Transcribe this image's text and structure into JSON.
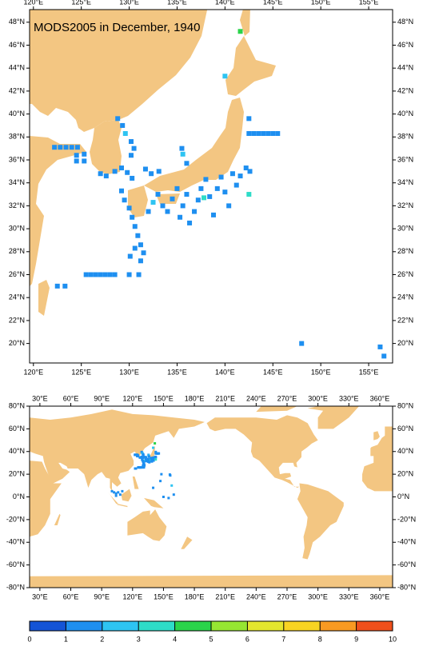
{
  "title": "MODS2005 in December, 1940",
  "regional_map": {
    "xlim": [
      119.6,
      157.5
    ],
    "ylim": [
      18.3,
      49.1
    ],
    "xticks": [
      {
        "value": 120,
        "label": "120°E"
      },
      {
        "value": 125,
        "label": "125°E"
      },
      {
        "value": 130,
        "label": "130°E"
      },
      {
        "value": 135,
        "label": "135°E"
      },
      {
        "value": 140,
        "label": "140°E"
      },
      {
        "value": 145,
        "label": "145°E"
      },
      {
        "value": 150,
        "label": "150°E"
      },
      {
        "value": 155,
        "label": "155°E"
      }
    ],
    "yticks": [
      {
        "value": 20,
        "label": "20°N"
      },
      {
        "value": 22,
        "label": "22°N"
      },
      {
        "value": 24,
        "label": "24°N"
      },
      {
        "value": 26,
        "label": "26°N"
      },
      {
        "value": 28,
        "label": "28°N"
      },
      {
        "value": 30,
        "label": "30°N"
      },
      {
        "value": 32,
        "label": "32°N"
      },
      {
        "value": 34,
        "label": "34°N"
      },
      {
        "value": 36,
        "label": "36°N"
      },
      {
        "value": 38,
        "label": "38°N"
      },
      {
        "value": 40,
        "label": "40°N"
      },
      {
        "value": 42,
        "label": "42°N"
      },
      {
        "value": 44,
        "label": "44°N"
      },
      {
        "value": 46,
        "label": "46°N"
      },
      {
        "value": 48,
        "label": "48°N"
      }
    ]
  },
  "global_map": {
    "xlim": [
      20,
      372.5
    ],
    "ylim": [
      -80,
      80
    ],
    "xticks": [
      {
        "value": 30,
        "label": "30°E"
      },
      {
        "value": 60,
        "label": "60°E"
      },
      {
        "value": 90,
        "label": "90°E"
      },
      {
        "value": 120,
        "label": "120°E"
      },
      {
        "value": 150,
        "label": "150°E"
      },
      {
        "value": 180,
        "label": "180°E"
      },
      {
        "value": 210,
        "label": "210°E"
      },
      {
        "value": 240,
        "label": "240°E"
      },
      {
        "value": 270,
        "label": "270°E"
      },
      {
        "value": 300,
        "label": "300°E"
      },
      {
        "value": 330,
        "label": "330°E"
      },
      {
        "value": 360,
        "label": "360°E"
      }
    ],
    "yticks": [
      {
        "value": -80,
        "label": "-80°N"
      },
      {
        "value": -60,
        "label": "-60°N"
      },
      {
        "value": -40,
        "label": "-40°N"
      },
      {
        "value": -20,
        "label": "-20°N"
      },
      {
        "value": 0,
        "label": "0°N"
      },
      {
        "value": 20,
        "label": "20°N"
      },
      {
        "value": 40,
        "label": "40°N"
      },
      {
        "value": 60,
        "label": "60°N"
      },
      {
        "value": 80,
        "label": "80°N"
      }
    ]
  },
  "observations": [
    {
      "lon": 141.6,
      "lat": 47.2,
      "value": 4.5
    },
    {
      "lon": 140,
      "lat": 43.3,
      "value": 2.6
    },
    {
      "lon": 142.5,
      "lat": 39.6,
      "value": 1.3
    },
    {
      "lon": 142.5,
      "lat": 38.3,
      "value": 1.3
    },
    {
      "lon": 143,
      "lat": 38.3,
      "value": 1.3
    },
    {
      "lon": 143.5,
      "lat": 38.3,
      "value": 1.3
    },
    {
      "lon": 144,
      "lat": 38.3,
      "value": 1.3
    },
    {
      "lon": 144.5,
      "lat": 38.3,
      "value": 1.3
    },
    {
      "lon": 145,
      "lat": 38.3,
      "value": 1.3
    },
    {
      "lon": 145.5,
      "lat": 38.3,
      "value": 1.3
    },
    {
      "lon": 128.8,
      "lat": 39.6,
      "value": 1.3
    },
    {
      "lon": 129.3,
      "lat": 39,
      "value": 1.3
    },
    {
      "lon": 129.6,
      "lat": 38.3,
      "value": 2.3
    },
    {
      "lon": 130.2,
      "lat": 37.6,
      "value": 1.3
    },
    {
      "lon": 130.5,
      "lat": 37,
      "value": 1.3
    },
    {
      "lon": 130.2,
      "lat": 36.4,
      "value": 1.3
    },
    {
      "lon": 122.2,
      "lat": 37.1,
      "value": 1.3
    },
    {
      "lon": 122.8,
      "lat": 37.1,
      "value": 1.3
    },
    {
      "lon": 123.4,
      "lat": 37.1,
      "value": 1.3
    },
    {
      "lon": 124,
      "lat": 37.1,
      "value": 1.3
    },
    {
      "lon": 124.6,
      "lat": 37.1,
      "value": 1.3
    },
    {
      "lon": 124.5,
      "lat": 36.4,
      "value": 1.3
    },
    {
      "lon": 124.5,
      "lat": 35.9,
      "value": 1.3
    },
    {
      "lon": 125.3,
      "lat": 36.5,
      "value": 1.3
    },
    {
      "lon": 125.3,
      "lat": 35.9,
      "value": 1.3
    },
    {
      "lon": 127,
      "lat": 34.8,
      "value": 1.3
    },
    {
      "lon": 127.6,
      "lat": 34.6,
      "value": 1.3
    },
    {
      "lon": 128.5,
      "lat": 35,
      "value": 1.3
    },
    {
      "lon": 129.2,
      "lat": 35.3,
      "value": 1.3
    },
    {
      "lon": 129.8,
      "lat": 34.9,
      "value": 1.3
    },
    {
      "lon": 130.3,
      "lat": 34.4,
      "value": 1.3
    },
    {
      "lon": 129.2,
      "lat": 33.3,
      "value": 1.3
    },
    {
      "lon": 129.5,
      "lat": 32.5,
      "value": 1.3
    },
    {
      "lon": 130,
      "lat": 31.8,
      "value": 1.3
    },
    {
      "lon": 130.3,
      "lat": 31,
      "value": 1.3
    },
    {
      "lon": 130.6,
      "lat": 30.2,
      "value": 1.3
    },
    {
      "lon": 130.9,
      "lat": 29.4,
      "value": 1.3
    },
    {
      "lon": 131.2,
      "lat": 28.6,
      "value": 1.3
    },
    {
      "lon": 131.5,
      "lat": 27.9,
      "value": 1.3
    },
    {
      "lon": 131.2,
      "lat": 27.2,
      "value": 1.3
    },
    {
      "lon": 130.6,
      "lat": 28.3,
      "value": 1.3
    },
    {
      "lon": 130.1,
      "lat": 27.6,
      "value": 1.3
    },
    {
      "lon": 125.5,
      "lat": 26,
      "value": 1.3
    },
    {
      "lon": 126,
      "lat": 26,
      "value": 1.3
    },
    {
      "lon": 126.5,
      "lat": 26,
      "value": 1.3
    },
    {
      "lon": 127,
      "lat": 26,
      "value": 1.3
    },
    {
      "lon": 127.5,
      "lat": 26,
      "value": 1.3
    },
    {
      "lon": 128,
      "lat": 26,
      "value": 1.3
    },
    {
      "lon": 128.5,
      "lat": 26,
      "value": 1.3
    },
    {
      "lon": 130,
      "lat": 26,
      "value": 1.3
    },
    {
      "lon": 131,
      "lat": 26,
      "value": 1.3
    },
    {
      "lon": 122.5,
      "lat": 25,
      "value": 1.3
    },
    {
      "lon": 123.3,
      "lat": 25,
      "value": 1.3
    },
    {
      "lon": 132,
      "lat": 31.5,
      "value": 1.3
    },
    {
      "lon": 132.5,
      "lat": 32.3,
      "value": 2.4
    },
    {
      "lon": 133,
      "lat": 33,
      "value": 1.3
    },
    {
      "lon": 133.5,
      "lat": 32,
      "value": 1.3
    },
    {
      "lon": 134,
      "lat": 31.5,
      "value": 1.3
    },
    {
      "lon": 134.5,
      "lat": 32.6,
      "value": 1.3
    },
    {
      "lon": 135,
      "lat": 33.5,
      "value": 1.3
    },
    {
      "lon": 135.3,
      "lat": 31,
      "value": 1.3
    },
    {
      "lon": 135.6,
      "lat": 32,
      "value": 1.3
    },
    {
      "lon": 136,
      "lat": 33,
      "value": 1.3
    },
    {
      "lon": 136.3,
      "lat": 30.5,
      "value": 1.3
    },
    {
      "lon": 136.8,
      "lat": 31.5,
      "value": 1.3
    },
    {
      "lon": 137.2,
      "lat": 32.5,
      "value": 1.3
    },
    {
      "lon": 137.5,
      "lat": 33.5,
      "value": 1.3
    },
    {
      "lon": 137.8,
      "lat": 32.7,
      "value": 3.2
    },
    {
      "lon": 138,
      "lat": 34.3,
      "value": 1.3
    },
    {
      "lon": 138.4,
      "lat": 32.8,
      "value": 1.3
    },
    {
      "lon": 138.8,
      "lat": 31.2,
      "value": 1.3
    },
    {
      "lon": 139.2,
      "lat": 33.5,
      "value": 1.3
    },
    {
      "lon": 139.6,
      "lat": 34.5,
      "value": 1.3
    },
    {
      "lon": 140,
      "lat": 33.2,
      "value": 1.3
    },
    {
      "lon": 140.4,
      "lat": 32,
      "value": 1.3
    },
    {
      "lon": 140.8,
      "lat": 34.8,
      "value": 1.3
    },
    {
      "lon": 141.2,
      "lat": 33.8,
      "value": 1.3
    },
    {
      "lon": 141.6,
      "lat": 34.6,
      "value": 1.3
    },
    {
      "lon": 142.2,
      "lat": 35.3,
      "value": 1.3
    },
    {
      "lon": 142.6,
      "lat": 35,
      "value": 1.3
    },
    {
      "lon": 142.5,
      "lat": 33,
      "value": 3.5
    },
    {
      "lon": 135.5,
      "lat": 37,
      "value": 1.3
    },
    {
      "lon": 135.6,
      "lat": 36.5,
      "value": 2.5
    },
    {
      "lon": 136,
      "lat": 35.7,
      "value": 1.3
    },
    {
      "lon": 132.3,
      "lat": 34.8,
      "value": 1.3
    },
    {
      "lon": 133.1,
      "lat": 35,
      "value": 1.3
    },
    {
      "lon": 131.7,
      "lat": 35.2,
      "value": 1.3
    },
    {
      "lon": 156.2,
      "lat": 19.7,
      "value": 1.3
    },
    {
      "lon": 156.6,
      "lat": 18.9,
      "value": 1.3
    },
    {
      "lon": 100,
      "lat": 5,
      "value": 1.3
    },
    {
      "lon": 102,
      "lat": 4,
      "value": 1.3
    },
    {
      "lon": 104,
      "lat": 3,
      "value": 1.3
    },
    {
      "lon": 106,
      "lat": 4,
      "value": 1.3
    },
    {
      "lon": 104,
      "lat": 1,
      "value": 1.3
    },
    {
      "lon": 108,
      "lat": 2,
      "value": 1.3
    },
    {
      "lon": 110,
      "lat": 5,
      "value": 1.3
    },
    {
      "lon": 150,
      "lat": 0,
      "value": 1.3
    },
    {
      "lon": 155,
      "lat": -1,
      "value": 1.3
    },
    {
      "lon": 158,
      "lat": 10,
      "value": 2.5
    },
    {
      "lon": 160,
      "lat": 2,
      "value": 1.3
    },
    {
      "lon": 140,
      "lat": 8,
      "value": 1.3
    },
    {
      "lon": 147,
      "lat": 14,
      "value": 1.3
    },
    {
      "lon": 148,
      "lat": 20,
      "value": 1.3
    }
  ],
  "colorbar": {
    "ticks": [
      0,
      1,
      2,
      3,
      4,
      5,
      6,
      7,
      8,
      9,
      10
    ],
    "colors": [
      "#1454d6",
      "#1e8ff0",
      "#2ec4f2",
      "#2edcc8",
      "#2ad44a",
      "#96e632",
      "#e4e62e",
      "#f8d422",
      "#f89a22",
      "#f0501c"
    ]
  }
}
